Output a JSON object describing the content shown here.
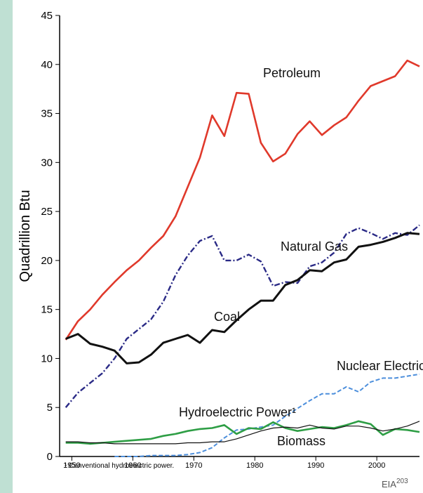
{
  "chart_data": {
    "type": "line",
    "ylabel": "Quadrillion Btu",
    "footnote": "¹ Conventional hydroelectric power.",
    "source": "EIA",
    "source_sup": "203",
    "x": [
      1949,
      1951,
      1953,
      1955,
      1957,
      1959,
      1961,
      1963,
      1965,
      1967,
      1969,
      1971,
      1973,
      1975,
      1977,
      1979,
      1981,
      1983,
      1985,
      1987,
      1989,
      1991,
      1993,
      1995,
      1997,
      1999,
      2001,
      2003,
      2005,
      2007
    ],
    "xlim": [
      1948,
      2007
    ],
    "xticks": [
      1950,
      1960,
      1970,
      1980,
      1990,
      2000
    ],
    "ylim": [
      0,
      45
    ],
    "yticks": [
      0,
      5,
      10,
      15,
      20,
      25,
      30,
      35,
      40,
      45
    ],
    "series": [
      {
        "name": "Petroleum",
        "color": "#e0392b",
        "style": "solid",
        "values": [
          11.9,
          13.8,
          15.0,
          16.5,
          17.8,
          19.0,
          20.0,
          21.3,
          22.5,
          24.5,
          27.5,
          30.5,
          34.8,
          32.7,
          37.1,
          37.0,
          32.0,
          30.1,
          30.9,
          32.9,
          34.2,
          32.8,
          33.8,
          34.6,
          36.3,
          37.8,
          38.3,
          38.8,
          40.4,
          39.8
        ]
      },
      {
        "name": "Natural Gas",
        "color": "#2a2a86",
        "style": "dashdot",
        "values": [
          5.0,
          6.5,
          7.5,
          8.5,
          10.0,
          12.0,
          13.0,
          14.0,
          15.8,
          18.5,
          20.5,
          22.0,
          22.5,
          20.0,
          20.0,
          20.6,
          19.9,
          17.4,
          17.8,
          17.7,
          19.4,
          19.8,
          20.8,
          22.7,
          23.3,
          22.8,
          22.2,
          22.8,
          22.6,
          23.6
        ]
      },
      {
        "name": "Coal",
        "color": "#111111",
        "style": "thick",
        "values": [
          12.0,
          12.5,
          11.5,
          11.2,
          10.8,
          9.5,
          9.6,
          10.4,
          11.6,
          12.0,
          12.4,
          11.6,
          12.9,
          12.7,
          13.9,
          15.0,
          15.9,
          15.9,
          17.5,
          18.0,
          19.0,
          18.9,
          19.8,
          20.1,
          21.4,
          21.6,
          21.9,
          22.3,
          22.8,
          22.7
        ]
      },
      {
        "name": "Nuclear Electric Power",
        "color": "#4d8fdc",
        "style": "dashed",
        "values": [
          null,
          null,
          null,
          null,
          0,
          0,
          0,
          0.1,
          0.1,
          0.1,
          0.2,
          0.4,
          0.9,
          1.9,
          2.7,
          2.8,
          3.0,
          3.2,
          4.1,
          4.9,
          5.7,
          6.4,
          6.4,
          7.1,
          6.6,
          7.6,
          8.0,
          8.0,
          8.2,
          8.4
        ]
      },
      {
        "name": "Hydroelectric Power¹",
        "color": "#2e9e45",
        "style": "solid",
        "values": [
          1.4,
          1.4,
          1.3,
          1.4,
          1.5,
          1.6,
          1.7,
          1.8,
          2.1,
          2.3,
          2.6,
          2.8,
          2.9,
          3.2,
          2.3,
          2.9,
          2.8,
          3.5,
          2.9,
          2.6,
          2.8,
          3.0,
          2.9,
          3.2,
          3.6,
          3.3,
          2.2,
          2.8,
          2.7,
          2.5
        ]
      },
      {
        "name": "Biomass",
        "color": "#111111",
        "style": "thin",
        "values": [
          1.5,
          1.5,
          1.4,
          1.4,
          1.3,
          1.3,
          1.3,
          1.3,
          1.3,
          1.3,
          1.4,
          1.4,
          1.5,
          1.5,
          1.8,
          2.2,
          2.6,
          2.9,
          3.0,
          2.9,
          3.2,
          2.9,
          2.8,
          3.1,
          3.1,
          2.9,
          2.6,
          2.8,
          3.1,
          3.6
        ]
      }
    ]
  }
}
